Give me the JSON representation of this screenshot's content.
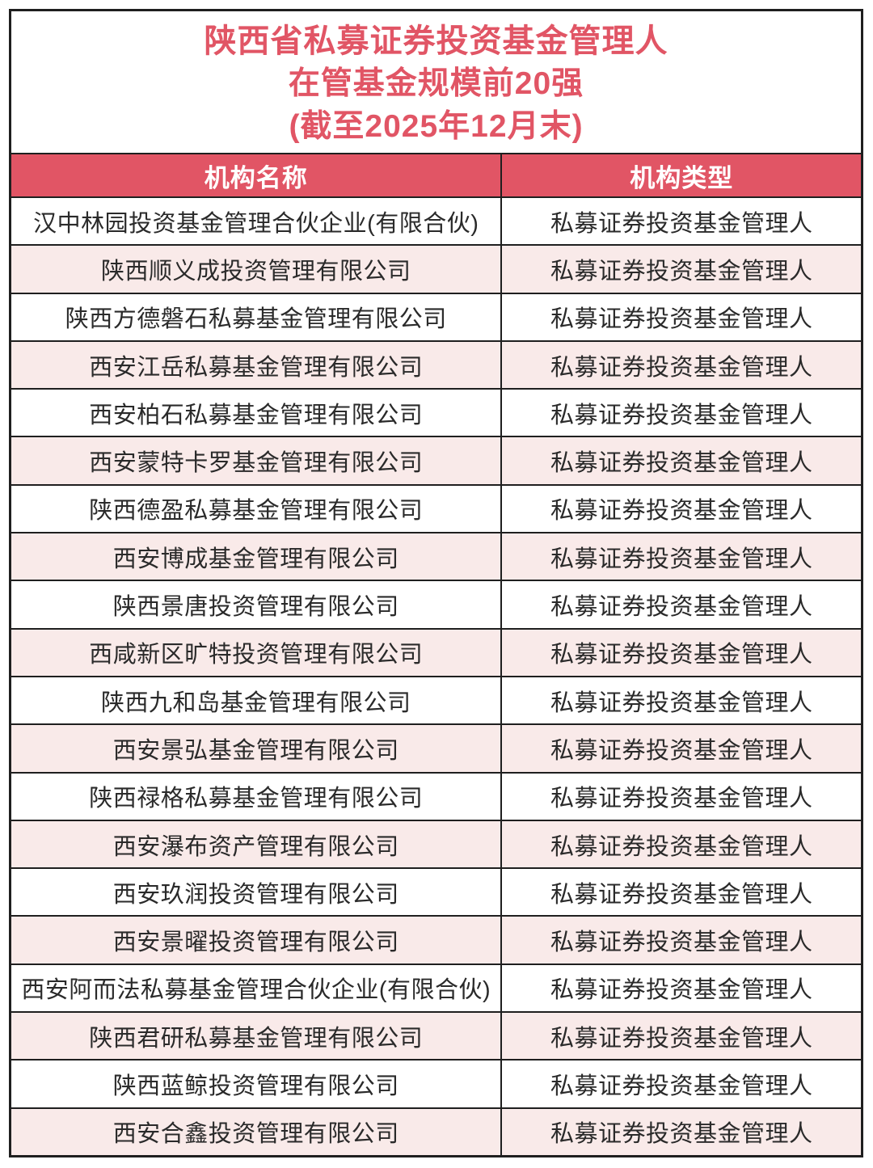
{
  "title": {
    "line1": "陕西省私募证券投资基金管理人",
    "line2": "在管基金规模前20强",
    "line3": "(截至2025年12月末)"
  },
  "table": {
    "columns": [
      "机构名称",
      "机构类型"
    ],
    "rows": [
      {
        "name": "汉中林园投资基金管理合伙企业(有限合伙)",
        "type": "私募证券投资基金管理人"
      },
      {
        "name": "陕西顺义成投资管理有限公司",
        "type": "私募证券投资基金管理人"
      },
      {
        "name": "陕西方德磐石私募基金管理有限公司",
        "type": "私募证券投资基金管理人"
      },
      {
        "name": "西安江岳私募基金管理有限公司",
        "type": "私募证券投资基金管理人"
      },
      {
        "name": "西安柏石私募基金管理有限公司",
        "type": "私募证券投资基金管理人"
      },
      {
        "name": "西安蒙特卡罗基金管理有限公司",
        "type": "私募证券投资基金管理人"
      },
      {
        "name": "陕西德盈私募基金管理有限公司",
        "type": "私募证券投资基金管理人"
      },
      {
        "name": "西安博成基金管理有限公司",
        "type": "私募证券投资基金管理人"
      },
      {
        "name": "陕西景唐投资管理有限公司",
        "type": "私募证券投资基金管理人"
      },
      {
        "name": "西咸新区旷特投资管理有限公司",
        "type": "私募证券投资基金管理人"
      },
      {
        "name": "陕西九和岛基金管理有限公司",
        "type": "私募证券投资基金管理人"
      },
      {
        "name": "西安景弘基金管理有限公司",
        "type": "私募证券投资基金管理人"
      },
      {
        "name": "陕西禄格私募基金管理有限公司",
        "type": "私募证券投资基金管理人"
      },
      {
        "name": "西安瀑布资产管理有限公司",
        "type": "私募证券投资基金管理人"
      },
      {
        "name": "西安玖润投资管理有限公司",
        "type": "私募证券投资基金管理人"
      },
      {
        "name": "西安景曜投资管理有限公司",
        "type": "私募证券投资基金管理人"
      },
      {
        "name": "西安阿而法私募基金管理合伙企业(有限合伙)",
        "type": "私募证券投资基金管理人"
      },
      {
        "name": "陕西君研私募基金管理有限公司",
        "type": "私募证券投资基金管理人"
      },
      {
        "name": "陕西蓝鲸投资管理有限公司",
        "type": "私募证券投资基金管理人"
      },
      {
        "name": "西安合鑫投资管理有限公司",
        "type": "私募证券投资基金管理人"
      }
    ]
  },
  "colors": {
    "accent_red": "#e15565",
    "row_pink": "#f9eae9",
    "row_white": "#ffffff",
    "border_dark": "#1f1f1f",
    "header_text": "#ffffff",
    "body_text": "#2a2a2a"
  }
}
